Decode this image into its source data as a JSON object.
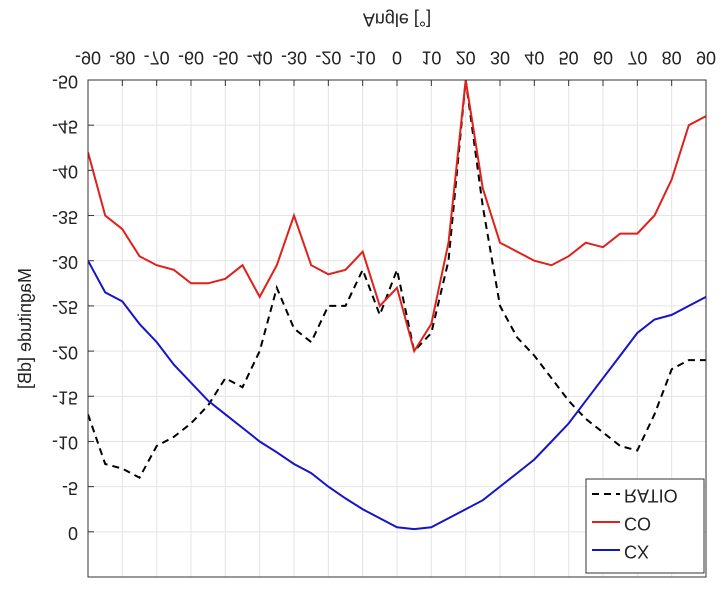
{
  "chart_data": {
    "type": "line",
    "title": "Angle [°]",
    "y_label": "Magnitude [dB]",
    "x": [
      -90,
      -85,
      -80,
      -75,
      -70,
      -65,
      -60,
      -55,
      -50,
      -45,
      -40,
      -35,
      -30,
      -25,
      -20,
      -15,
      -10,
      -5,
      0,
      5,
      10,
      15,
      20,
      25,
      30,
      35,
      40,
      45,
      50,
      55,
      60,
      65,
      70,
      75,
      80,
      85,
      90
    ],
    "series": [
      {
        "name": "RATIO",
        "color": "#000000",
        "linestyle": "dashed",
        "values": [
          -13,
          -7.5,
          -7,
          -6,
          -9.5,
          -10.5,
          -12,
          -14,
          -17,
          -16,
          -20,
          -27,
          -22.5,
          -21,
          -25,
          -25,
          -29,
          -24,
          -29,
          -20,
          -22,
          -30,
          -50,
          -36,
          -25,
          -21.5,
          -19.5,
          -17,
          -14.5,
          -12.5,
          -11,
          -9.5,
          -9,
          -13,
          -18,
          -19,
          -19
        ]
      },
      {
        "name": "CO",
        "color": "#e0201b",
        "linestyle": "solid",
        "values": [
          -42,
          -35,
          -33.5,
          -30.5,
          -29.5,
          -29,
          -27.5,
          -27.5,
          -28,
          -29.5,
          -26,
          -29.5,
          -35,
          -29.5,
          -28.5,
          -29,
          -31,
          -25,
          -27,
          -20,
          -23,
          -32,
          -50,
          -38,
          -32,
          -31,
          -30,
          -29.5,
          -30.5,
          -32,
          -31.5,
          -33,
          -33,
          -35,
          -39,
          -45,
          -46
        ]
      },
      {
        "name": "CX",
        "color": "#1515c8",
        "linestyle": "solid",
        "values": [
          -30,
          -26.5,
          -25.5,
          -23,
          -21,
          -18.5,
          -16.5,
          -14.5,
          -13,
          -11.5,
          -10,
          -8.8,
          -7.5,
          -6.5,
          -5,
          -3.7,
          -2.5,
          -1.5,
          -0.5,
          -0.3,
          -0.5,
          -1.5,
          -2.5,
          -3.5,
          -5,
          -6.5,
          -8,
          -10,
          -12,
          -14.5,
          -17,
          -19.5,
          -22,
          -23.5,
          -24,
          -25,
          -26
        ]
      }
    ],
    "xlim": [
      -90,
      90
    ],
    "xticks": [
      -90,
      -80,
      -70,
      -60,
      -50,
      -40,
      -30,
      -20,
      -10,
      0,
      10,
      20,
      30,
      40,
      50,
      60,
      70,
      80,
      90
    ],
    "ylim": [
      -50,
      5
    ],
    "yticks": [
      -50,
      -45,
      -40,
      -35,
      -30,
      -25,
      -20,
      -15,
      -10,
      -5,
      0
    ],
    "grid": true,
    "legend": "lower right"
  }
}
